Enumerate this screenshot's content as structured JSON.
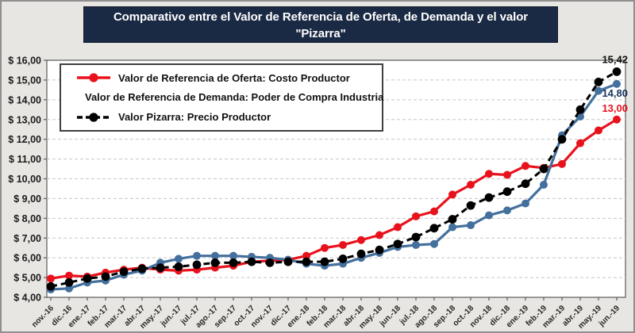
{
  "title": "Comparativo entre el Valor de Referencia de Oferta, de Demanda y el valor \"Pizarra\"",
  "chart_data": {
    "type": "line",
    "title": "Comparativo entre el Valor de Referencia de Oferta, de Demanda y el valor \"Pizarra\"",
    "grid": "horizontal-dashed",
    "legend_position": "top-left-inside",
    "ylim": [
      4,
      16
    ],
    "y_tick_step": 1,
    "y_tick_labels": [
      "$ 16,00",
      "$ 15,00",
      "$ 14,00",
      "$ 13,00",
      "$ 12,00",
      "$ 11,00",
      "$ 10,00",
      "$ 9,00",
      "$ 8,00",
      "$ 7,00",
      "$ 6,00",
      "$ 5,00",
      "$ 4,00"
    ],
    "categories": [
      "nov.-16",
      "dic.-16",
      "ene.-17",
      "feb.-17",
      "mar.-17",
      "abr.-17",
      "may.-17",
      "jun.-17",
      "jul.-17",
      "ago.-17",
      "sep.-17",
      "oct.-17",
      "nov.-17",
      "dic.-17",
      "ene.-18",
      "feb.-18",
      "mar.-18",
      "abr.-18",
      "may.-18",
      "jun.-18",
      "jul.-18",
      "ago.-18",
      "sep.-18",
      "oct.-18",
      "nov.-18",
      "dic.-18",
      "ene.-19",
      "feb.-19",
      "mar.-19",
      "abr.-19",
      "may.-19",
      "jun.-19"
    ],
    "series": [
      {
        "name": "Valor de Referencia de Oferta: Costo Productor",
        "color": "#e8121c",
        "dash": "solid",
        "marker": "circle",
        "values": [
          4.95,
          5.1,
          5.05,
          5.25,
          5.4,
          5.5,
          5.4,
          5.35,
          5.4,
          5.5,
          5.6,
          5.8,
          5.85,
          5.9,
          6.1,
          6.5,
          6.65,
          6.9,
          7.15,
          7.55,
          8.1,
          8.35,
          9.2,
          9.7,
          10.25,
          10.2,
          10.65,
          10.55,
          10.75,
          11.8,
          12.45,
          13.0
        ]
      },
      {
        "name": "Valor de Referencia de Demanda: Poder de Compra Industria",
        "color": "#44709d",
        "dash": "solid",
        "marker": "circle",
        "values": [
          4.4,
          4.45,
          4.75,
          4.85,
          5.15,
          5.35,
          5.75,
          5.95,
          6.1,
          6.1,
          6.1,
          6.05,
          6.0,
          5.9,
          5.7,
          5.6,
          5.7,
          6.0,
          6.25,
          6.55,
          6.65,
          6.7,
          7.55,
          7.65,
          8.15,
          8.4,
          8.75,
          9.7,
          12.2,
          13.15,
          14.45,
          14.8
        ]
      },
      {
        "name": "Valor Pizarra: Precio Productor",
        "color": "#000000",
        "dash": "dashed",
        "marker": "circle",
        "values": [
          4.55,
          4.75,
          4.95,
          5.05,
          5.3,
          5.45,
          5.5,
          5.55,
          5.65,
          5.75,
          5.75,
          5.8,
          5.75,
          5.8,
          5.8,
          5.8,
          5.95,
          6.2,
          6.4,
          6.7,
          7.05,
          7.5,
          7.95,
          8.65,
          9.05,
          9.35,
          9.75,
          10.5,
          12.0,
          13.5,
          14.9,
          15.42
        ]
      }
    ],
    "end_labels": [
      {
        "series": 2,
        "text": "15,42",
        "color": "#111111",
        "dy": -11
      },
      {
        "series": 1,
        "text": "14,80",
        "color": "#17365d",
        "dy": 16
      },
      {
        "series": 0,
        "text": "13,00",
        "color": "#e8121c",
        "dy": -10
      }
    ]
  },
  "colors": {
    "title_bg": "#1b2a44",
    "plot_bg": "#ffffff",
    "canvas_bg": "#e8e6e2",
    "gridline": "#c6c6c6",
    "axis": "#595959"
  }
}
